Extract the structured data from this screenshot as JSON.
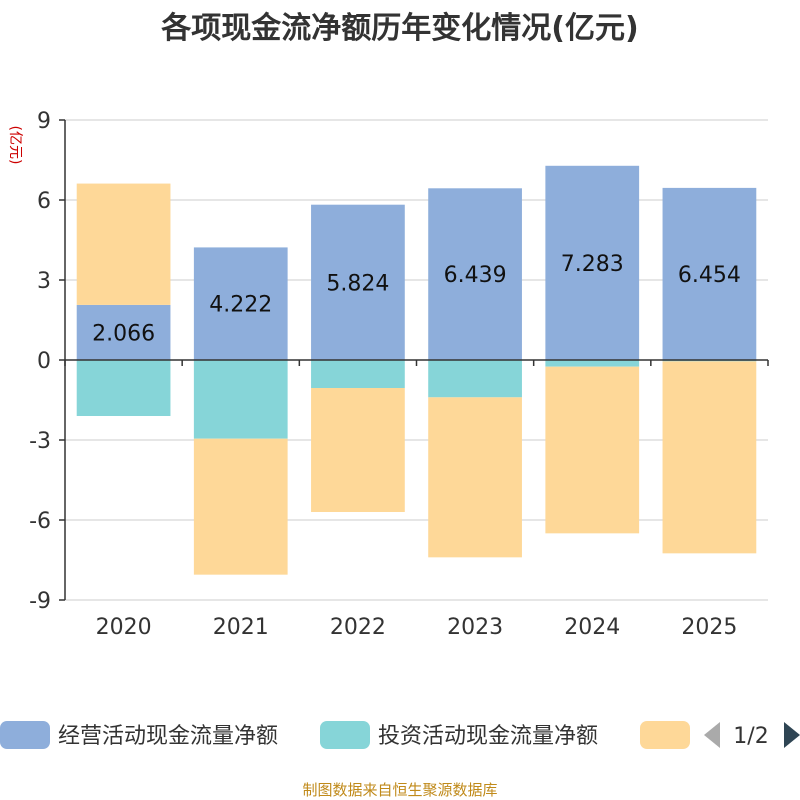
{
  "chart_data": {
    "type": "bar",
    "stacked": true,
    "title": "各项现金流净额历年变化情况(亿元)",
    "ylabel": "(亿元)",
    "categories": [
      "2020",
      "2021",
      "2022",
      "2023",
      "2024",
      "2025"
    ],
    "yticks": [
      "9",
      "6",
      "3",
      "0",
      "-3",
      "-6",
      "-9"
    ],
    "ylim": [
      -9,
      9
    ],
    "series": [
      {
        "name": "经营活动现金流量净额",
        "color": "#8eaedb",
        "values": [
          2.066,
          4.222,
          5.824,
          6.439,
          7.283,
          6.454
        ],
        "labels": [
          "2.066",
          "4.222",
          "5.824",
          "6.439",
          "7.283",
          "6.454"
        ]
      },
      {
        "name": "投资活动现金流量净额",
        "color": "#86d5d8",
        "values": [
          -2.1,
          -2.95,
          -1.05,
          -1.4,
          -0.25,
          -0.05
        ]
      },
      {
        "name": "",
        "color": "#fed898",
        "values": [
          4.55,
          -5.1,
          -4.65,
          -6.0,
          -6.25,
          -7.2
        ]
      }
    ],
    "legend": {
      "position": "bottom",
      "page": "1/2"
    }
  },
  "source": "制图数据来自恒生聚源数据库"
}
